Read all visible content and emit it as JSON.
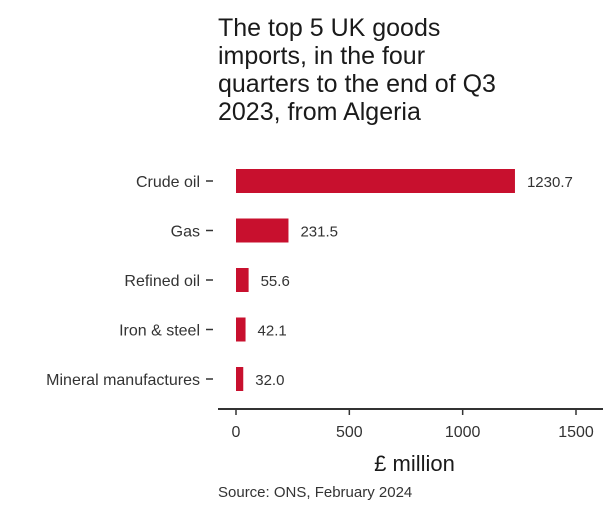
{
  "chart_data": {
    "type": "bar",
    "orientation": "horizontal",
    "title_lines": [
      "The top 5 UK goods",
      "imports, in the four",
      "quarters to the end of Q3",
      "2023, from Algeria"
    ],
    "categories": [
      "Crude oil",
      "Gas",
      "Refined oil",
      "Iron & steel",
      "Mineral manufactures"
    ],
    "values": [
      1230.7,
      231.5,
      55.6,
      42.1,
      32.0
    ],
    "value_labels": [
      "1230.7",
      "231.5",
      "55.6",
      "42.1",
      "32.0"
    ],
    "xlabel": "£ million",
    "ylabel": "",
    "xlim": [
      0,
      1500
    ],
    "xticks": [
      0,
      500,
      1000,
      1500
    ],
    "xtick_labels": [
      "0",
      "500",
      "1000",
      "1500"
    ],
    "grid": false,
    "legend": "none",
    "bar_color": "#c8102e",
    "source": "Source: ONS, February 2024"
  }
}
